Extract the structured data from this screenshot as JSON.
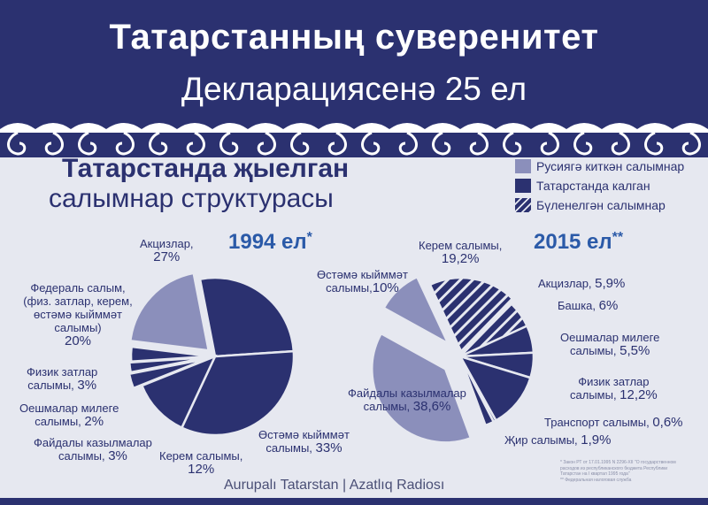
{
  "header": {
    "title_line1": "Татарстанның суверенитет",
    "title_line2": "Декларациясенә 25 ел"
  },
  "subtitle": {
    "line1": "Татарстанда җыелган",
    "line2": "салымнар структурасы"
  },
  "legend": [
    {
      "label": "Русиягә киткән салымнар",
      "color": "#8b8fbb",
      "pattern": "solid"
    },
    {
      "label": "Татарстанда калган",
      "color": "#2b3170",
      "pattern": "solid"
    },
    {
      "label": "Бүленелгән салымнар",
      "color": "#2b3170",
      "pattern": "striped"
    }
  ],
  "chart_data": [
    {
      "type": "pie",
      "title": "1994 ел",
      "title_mark": "*",
      "slices": [
        {
          "label": "Акцизлар,",
          "value": 27,
          "value_text": "27%",
          "group": "Татарстанда калган"
        },
        {
          "label": "Өстәмә кыйммәт салымы,",
          "value": 33,
          "value_text": "33%",
          "group": "Татарстанда калган"
        },
        {
          "label": "Керем салымы,",
          "value": 12,
          "value_text": "12%",
          "group": "Татарстанда калган"
        },
        {
          "label": "Файдалы казылмалар салымы,",
          "value": 3,
          "value_text": "3%",
          "group": "Татарстанда калган"
        },
        {
          "label": "Оешмалар милеге салымы,",
          "value": 2,
          "value_text": "2%",
          "group": "Татарстанда калган"
        },
        {
          "label": "Физик затлар салымы,",
          "value": 3,
          "value_text": "3%",
          "group": "Татарстанда калган"
        },
        {
          "label": "Федераль салым,",
          "sublabel": "(физ. затлар, керем, өстәмә кыйммәт салымы)",
          "value": 20,
          "value_text": "20%",
          "group": "Русиягә киткән салымнар"
        }
      ]
    },
    {
      "type": "pie",
      "title": "2015 ел",
      "title_mark": "**",
      "slices": [
        {
          "label": "Керем салымы,",
          "value": 19.2,
          "value_text": "19,2%",
          "group": "Бүленелгән салымнар"
        },
        {
          "label": "Акцизлар,",
          "value": 5.9,
          "value_text": "5,9%",
          "group": "Бүленелгән салымнар"
        },
        {
          "label": "Башка,",
          "value": 6,
          "value_text": "6%",
          "group": "Татарстанда калган"
        },
        {
          "label": "Оешмалар милеге салымы,",
          "value": 5.5,
          "value_text": "5,5%",
          "group": "Татарстанда калган"
        },
        {
          "label": "Физик затлар салымы,",
          "value": 12.2,
          "value_text": "12,2%",
          "group": "Татарстанда калган"
        },
        {
          "label": "Транспорт салымы,",
          "value": 0.6,
          "value_text": "0,6%",
          "group": "Татарстанда калган"
        },
        {
          "label": "Җир салымы,",
          "value": 1.9,
          "value_text": "1,9%",
          "group": "Татарстанда калган"
        },
        {
          "label": "Файдалы казылмалар салымы,",
          "value": 38.6,
          "value_text": "38,6%",
          "group": "Русиягә киткән салымнар"
        },
        {
          "label": "Өстәмә кыйммәт салымы,",
          "value": 10,
          "value_text": "10%",
          "group": "Русиягә киткән салымнар"
        }
      ]
    }
  ],
  "footnote": {
    "line1": "* Закон РТ от 17.01.1995 N 2296-XII \"О государственном",
    "line2": "расходов из республиканского бюджета Республики",
    "line3": "Татарстан на I квартал 1995 года\"",
    "line4": "** Федеральная налоговая служба"
  },
  "credit": "Aurupalı Tatarstan | Azatlıq Radiosı"
}
